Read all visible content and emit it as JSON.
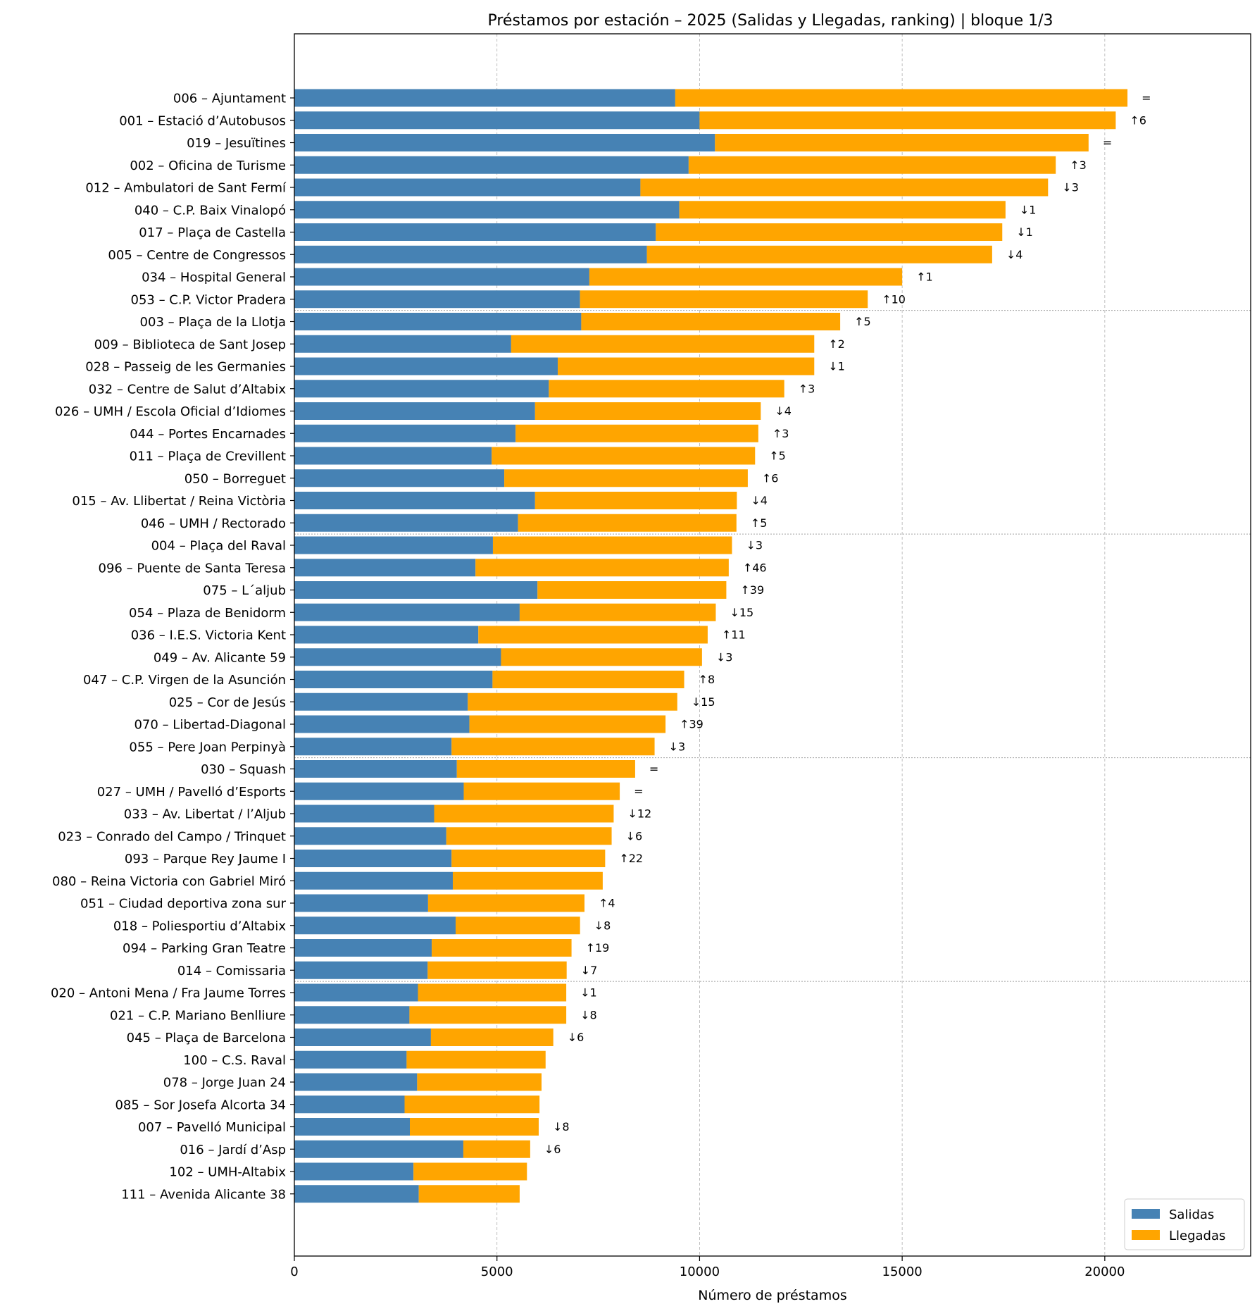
{
  "chart_data": {
    "type": "bar",
    "orientation": "horizontal",
    "stacked": true,
    "title": "Préstamos por estación – 2025 (Salidas y Llegadas, ranking)  |  bloque 1/3",
    "xlabel": "Número de préstamos",
    "ylabel": "",
    "xlim": [
      0,
      23600
    ],
    "xticks": [
      0,
      5000,
      10000,
      15000,
      20000
    ],
    "grid": "x",
    "group_separators_after": [
      10,
      20,
      30,
      40
    ],
    "legend": {
      "placement": "bottom-right",
      "entries": [
        "Salidas",
        "Llegadas"
      ]
    },
    "colors": {
      "Salidas": "#4682b4",
      "Llegadas": "#ffa500"
    },
    "categories": [
      "006 – Ajuntament",
      "001 – Estació d’Autobusos",
      "019 – Jesuïtines",
      "002 – Oficina de Turisme",
      "012 – Ambulatori de Sant Fermí",
      "040 – C.P. Baix Vinalopó",
      "017 – Plaça de Castella",
      "005 – Centre de Congressos",
      "034 – Hospital General",
      "053 – C.P. Victor Pradera",
      "003 – Plaça de la Llotja",
      "009 – Biblioteca de Sant Josep",
      "028 – Passeig de les Germanies",
      "032 – Centre de Salut d’Altabix",
      "026 – UMH / Escola Oficial d’Idiomes",
      "044 – Portes Encarnades",
      "011 – Plaça de Crevillent",
      "050 – Borreguet",
      "015 – Av. Llibertat / Reina Victòria",
      "046 – UMH / Rectorado",
      "004 – Plaça del Raval",
      "096 – Puente de Santa Teresa",
      "075 – L´aljub",
      "054 – Plaza de Benidorm",
      "036 – I.E.S. Victoria Kent",
      "049 – Av. Alicante 59",
      "047 – C.P. Virgen de la Asunción",
      "025 – Cor de Jesús",
      "070 – Libertad-Diagonal",
      "055 – Pere Joan Perpinyà",
      "030 – Squash",
      "027 – UMH / Pavelló d’Esports",
      "033 – Av. Libertat / l’Aljub",
      "023 – Conrado del Campo / Trinquet",
      "093 – Parque Rey Jaume I",
      "080 – Reina Victoria con Gabriel Miró",
      "051 – Ciudad deportiva zona sur",
      "018 – Poliesportiu d’Altabix",
      "094 – Parking Gran Teatre",
      "014 – Comissaria",
      "020 – Antoni Mena / Fra Jaume Torres",
      "021 – C.P. Mariano Benlliure",
      "045 – Plaça de Barcelona",
      "100 – C.S. Raval",
      "078 – Jorge Juan 24",
      "085 – Sor Josefa Alcorta 34",
      "007 – Pavelló Municipal",
      "016 – Jardí d’Asp",
      "102 – UMH-Altabix",
      "111 – Avenida Alicante 38"
    ],
    "series": [
      {
        "name": "Salidas",
        "values": [
          9400,
          10000,
          10380,
          9730,
          8540,
          9500,
          8920,
          8700,
          7280,
          7050,
          7080,
          5350,
          6500,
          6280,
          5940,
          5460,
          4870,
          5180,
          5940,
          5520,
          4900,
          4470,
          6000,
          5560,
          4540,
          5100,
          4890,
          4280,
          4320,
          3880,
          4010,
          4180,
          3450,
          3750,
          3880,
          3910,
          3300,
          3980,
          3390,
          3290,
          3050,
          2840,
          3370,
          2770,
          3030,
          2720,
          2850,
          4170,
          2940,
          3070
        ]
      },
      {
        "name": "Llegadas",
        "values": [
          11160,
          10270,
          9220,
          9060,
          10060,
          8050,
          8550,
          8520,
          7720,
          7100,
          6390,
          7480,
          6330,
          5810,
          5570,
          5990,
          6500,
          6010,
          4980,
          5390,
          5900,
          6250,
          4660,
          4840,
          5660,
          4960,
          4730,
          5170,
          4840,
          5010,
          4400,
          3850,
          4430,
          4080,
          3790,
          3700,
          3860,
          3070,
          3450,
          3430,
          3660,
          3870,
          3020,
          3430,
          3070,
          3330,
          3180,
          1650,
          2800,
          2490
        ]
      }
    ],
    "annotations": [
      "=",
      "↑6",
      "=",
      "↑3",
      "↓3",
      "↓1",
      "↓1",
      "↓4",
      "↑1",
      "↑10",
      "↑5",
      "↑2",
      "↓1",
      "↑3",
      "↓4",
      "↑3",
      "↑5",
      "↑6",
      "↓4",
      "↑5",
      "↓3",
      "↑46",
      "↑39",
      "↓15",
      "↑11",
      "↓3",
      "↑8",
      "↓15",
      "↑39",
      "↓3",
      "=",
      "=",
      "↓12",
      "↓6",
      "↑22",
      "",
      "↑4",
      "↓8",
      "↑19",
      "↓7",
      "↓1",
      "↓8",
      "↓6",
      "",
      "",
      "",
      "↓8",
      "↓6",
      "",
      ""
    ]
  }
}
